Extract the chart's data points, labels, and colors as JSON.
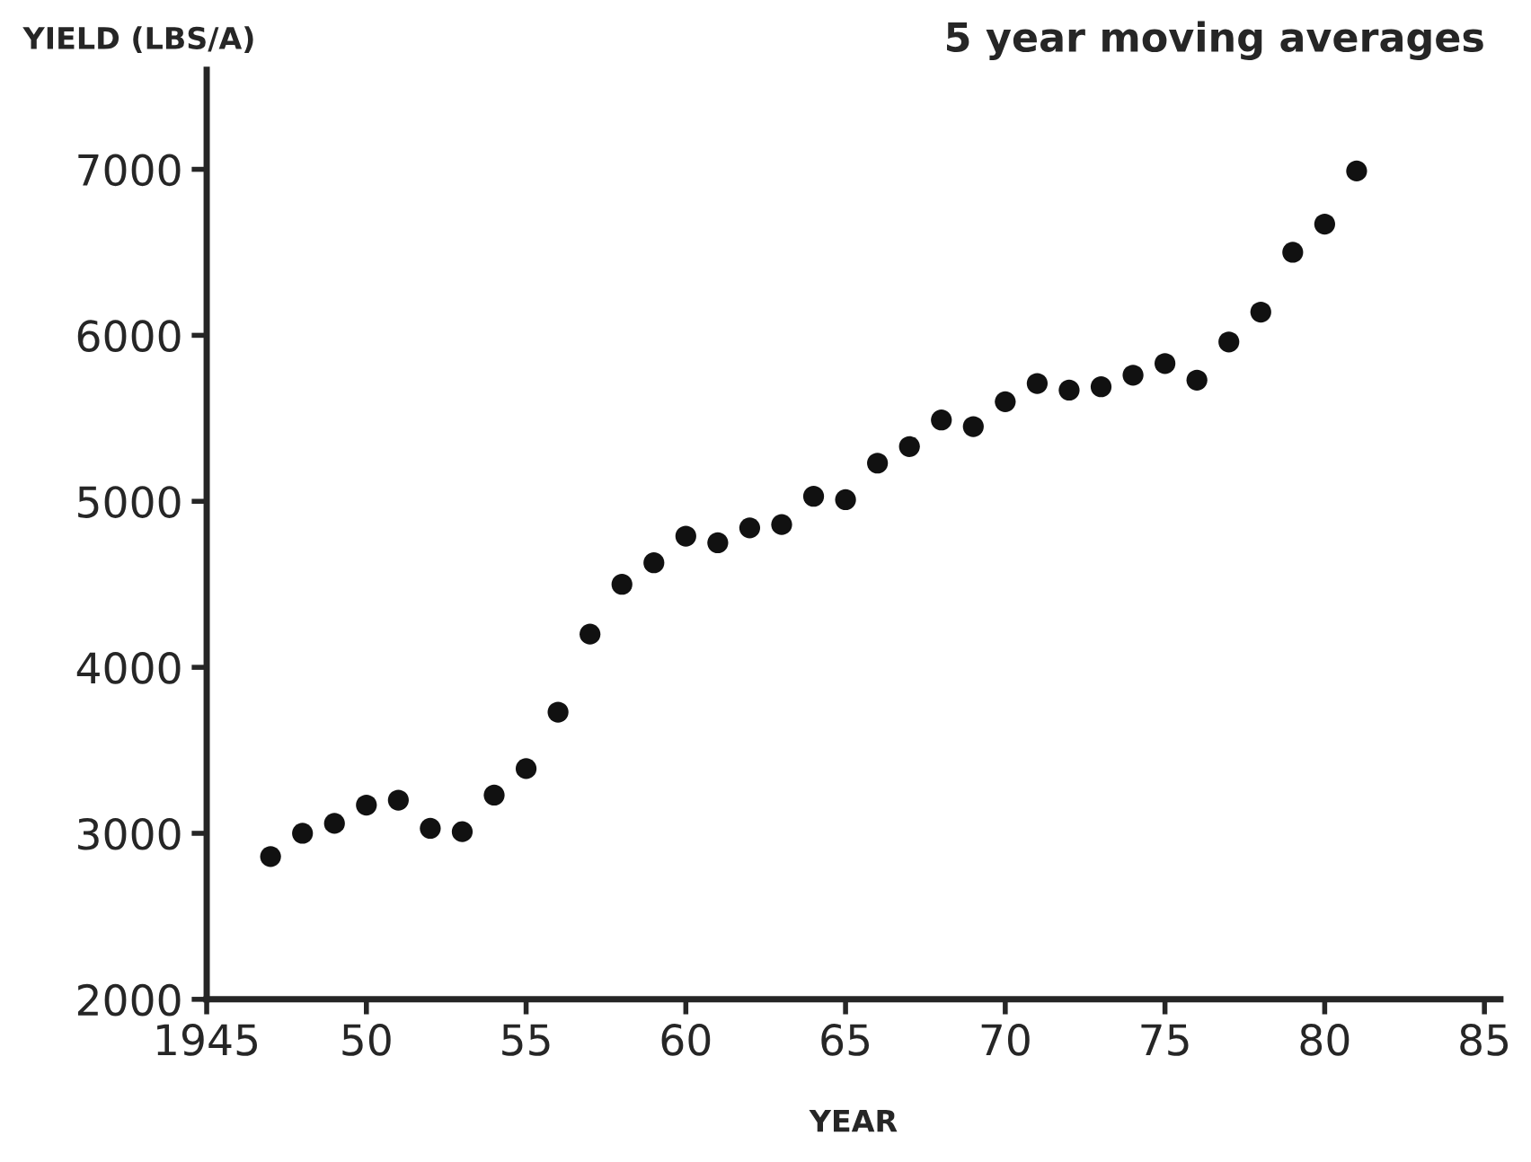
{
  "chart_data": {
    "type": "scatter",
    "title": "5 year moving averages",
    "xlabel": "YEAR",
    "ylabel": "YIELD (LBS/A)",
    "x": [
      1947,
      1948,
      1949,
      1950,
      1951,
      1952,
      1953,
      1954,
      1955,
      1956,
      1957,
      1958,
      1959,
      1960,
      1961,
      1962,
      1963,
      1964,
      1965,
      1966,
      1967,
      1968,
      1969,
      1970,
      1971,
      1972,
      1973,
      1974,
      1975,
      1976,
      1977,
      1978,
      1979,
      1980,
      1981
    ],
    "values": [
      2860,
      3000,
      3060,
      3170,
      3200,
      3030,
      3010,
      3230,
      3390,
      3730,
      4200,
      4500,
      4630,
      4790,
      4750,
      4840,
      4860,
      5030,
      5010,
      5230,
      5330,
      5490,
      5450,
      5600,
      5710,
      5670,
      5690,
      5760,
      5830,
      5730,
      5960,
      6140,
      6500,
      6670,
      6990
    ],
    "color": "#111111",
    "marker": "circle",
    "grid": false,
    "xlim": [
      1945,
      1985.5
    ],
    "ylim": [
      2000,
      7600
    ],
    "xticks": [
      {
        "value": 1945,
        "label": "1945"
      },
      {
        "value": 1950,
        "label": "50"
      },
      {
        "value": 1955,
        "label": "55"
      },
      {
        "value": 1960,
        "label": "60"
      },
      {
        "value": 1965,
        "label": "65"
      },
      {
        "value": 1970,
        "label": "70"
      },
      {
        "value": 1975,
        "label": "75"
      },
      {
        "value": 1980,
        "label": "80"
      },
      {
        "value": 1985,
        "label": "85"
      }
    ],
    "yticks": [
      2000,
      3000,
      4000,
      5000,
      6000,
      7000
    ]
  }
}
